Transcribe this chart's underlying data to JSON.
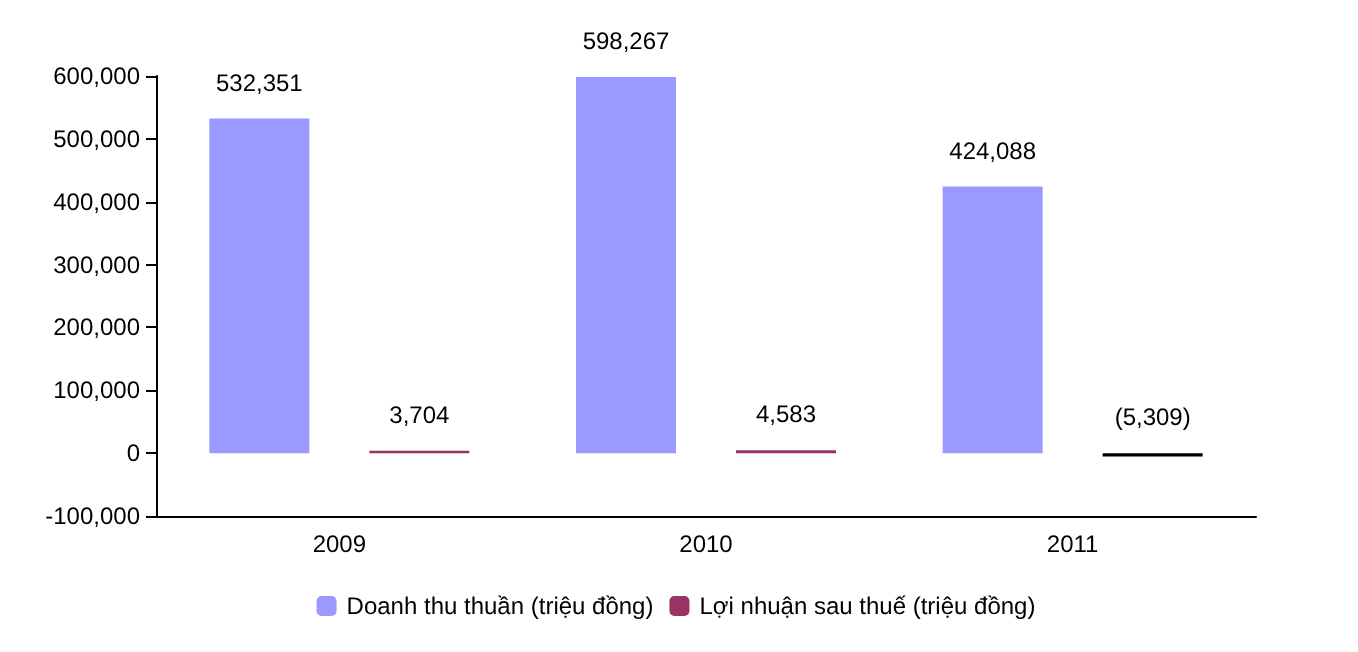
{
  "chart_data": {
    "type": "bar",
    "categories": [
      "2009",
      "2010",
      "2011"
    ],
    "series": [
      {
        "name": "Doanh thu thuần (triệu đồng)",
        "color": "#9999ff",
        "values": [
          532351,
          598267,
          424088
        ],
        "value_labels": [
          "532,351",
          "598,267",
          "424,088"
        ]
      },
      {
        "name": "Lợi nhuận sau thuế (triệu đồng)",
        "color": "#993366",
        "colors": [
          "#993366",
          "#993366",
          "#000000"
        ],
        "values": [
          3704,
          4583,
          -5309
        ],
        "value_labels": [
          "3,704",
          "4,583",
          "(5,309)"
        ]
      }
    ],
    "ylim": [
      -100000,
      600000
    ],
    "yticks": [
      {
        "value": -100000,
        "label": "-100,000"
      },
      0,
      {
        "value": 100000,
        "label": "100,000"
      },
      {
        "value": 200000,
        "label": "200,000"
      },
      {
        "value": 300000,
        "label": "300,000"
      },
      {
        "value": 400000,
        "label": "400,000"
      },
      {
        "value": 500000,
        "label": "500,000"
      },
      {
        "value": 600000,
        "label": "600,000"
      }
    ],
    "grid": false,
    "legend": "bottom"
  }
}
